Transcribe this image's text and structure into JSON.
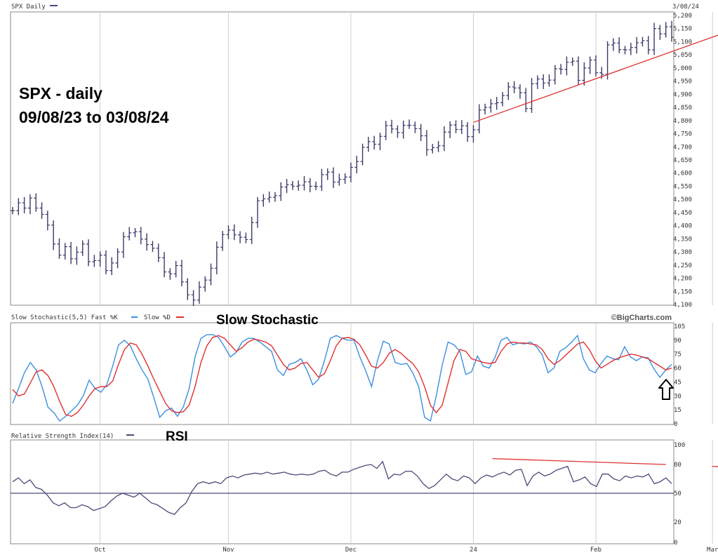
{
  "chart_data": [
    {
      "type": "ohlc",
      "panel": "price",
      "header": "SPX Daily",
      "date_label": "3/08/24",
      "annotation_lines": [
        "SPX - daily",
        "09/08/23 to 03/08/24"
      ],
      "y_ticks": [
        "5,200",
        "5,150",
        "5,100",
        "5,050",
        "5,000",
        "4,950",
        "4,900",
        "4,850",
        "4,800",
        "4,750",
        "4,700",
        "4,650",
        "4,600",
        "4,550",
        "4,500",
        "4,450",
        "4,400",
        "4,350",
        "4,300",
        "4,250",
        "4,200",
        "4,150",
        "4,100"
      ],
      "ylim": [
        4100,
        5200
      ],
      "closes": [
        4457,
        4487,
        4467,
        4505,
        4467,
        4443,
        4402,
        4330,
        4288,
        4320,
        4274,
        4299,
        4330,
        4263,
        4267,
        4288,
        4229,
        4258,
        4300,
        4358,
        4373,
        4377,
        4349,
        4328,
        4314,
        4278,
        4224,
        4217,
        4248,
        4186,
        4137,
        4117,
        4166,
        4193,
        4238,
        4318,
        4366,
        4383,
        4365,
        4356,
        4347,
        4412,
        4495,
        4502,
        4508,
        4514,
        4547,
        4556,
        4550,
        4554,
        4567,
        4550,
        4549,
        4594,
        4604,
        4566,
        4576,
        4585,
        4622,
        4644,
        4698,
        4720,
        4710,
        4740,
        4781,
        4768,
        4754,
        4782,
        4782,
        4769,
        4742,
        4689,
        4697,
        4704,
        4756,
        4783,
        4766,
        4780,
        4739,
        4765,
        4840,
        4850,
        4864,
        4868,
        4895,
        4928,
        4924,
        4906,
        4846,
        4940,
        4958,
        4943,
        4954,
        4997,
        4995,
        5022,
        5026,
        4953,
        5000,
        5030,
        4982,
        4976,
        5088,
        5095,
        5070,
        5069,
        5078,
        5096,
        5104,
        5069,
        5150,
        5130,
        5157,
        5117
      ],
      "trendlines": [
        {
          "color": "#e03030",
          "from": {
            "i": 79,
            "v": 4793
          },
          "to": {
            "i": 129,
            "v": 5189
          }
        }
      ],
      "x_ticks": [
        {
          "label": "Oct",
          "i": 15
        },
        {
          "label": "Nov",
          "i": 37
        },
        {
          "label": "Dec",
          "i": 58
        },
        {
          "label": "24",
          "i": 79
        },
        {
          "label": "Feb",
          "i": 100
        },
        {
          "label": "Mar",
          "i": 120
        }
      ]
    },
    {
      "type": "line",
      "panel": "stochastic",
      "header": "Slow Stochastic(5,5) Fast %K",
      "fast_label": "Fast %K",
      "slow_label": "Slow %D",
      "title": "Slow Stochastic",
      "watermark": "©BigCharts.com",
      "y_ticks": [
        "105",
        "90",
        "75",
        "60",
        "45",
        "30",
        "15",
        "0"
      ],
      "ylim": [
        0,
        105
      ],
      "series": [
        {
          "name": "Fast %K",
          "color": "#3b8fe0",
          "values": [
            22,
            38,
            55,
            66,
            58,
            40,
            18,
            12,
            3,
            8,
            14,
            20,
            30,
            47,
            38,
            34,
            42,
            62,
            85,
            90,
            84,
            70,
            58,
            48,
            28,
            7,
            14,
            17,
            8,
            18,
            38,
            72,
            92,
            96,
            96,
            93,
            83,
            72,
            77,
            88,
            92,
            92,
            88,
            83,
            78,
            58,
            52,
            64,
            66,
            70,
            58,
            42,
            48,
            68,
            92,
            95,
            92,
            90,
            90,
            72,
            57,
            40,
            68,
            89,
            86,
            66,
            64,
            65,
            55,
            40,
            7,
            3,
            30,
            63,
            88,
            85,
            78,
            53,
            56,
            73,
            62,
            60,
            72,
            90,
            93,
            85,
            87,
            86,
            88,
            83,
            74,
            55,
            60,
            78,
            82,
            88,
            95,
            70,
            58,
            55,
            65,
            73,
            70,
            69,
            83,
            72,
            68,
            72,
            71,
            59,
            50,
            58,
            64
          ]
        },
        {
          "name": "Slow %D",
          "color": "#e03030",
          "values": [
            37,
            30,
            32,
            44,
            56,
            58,
            52,
            40,
            24,
            10,
            8,
            12,
            20,
            30,
            38,
            40,
            40,
            46,
            64,
            80,
            87,
            85,
            75,
            62,
            48,
            35,
            22,
            14,
            12,
            13,
            20,
            40,
            66,
            84,
            93,
            95,
            92,
            85,
            78,
            82,
            88,
            91,
            90,
            88,
            84,
            74,
            64,
            58,
            60,
            65,
            66,
            58,
            50,
            54,
            68,
            84,
            92,
            93,
            91,
            85,
            74,
            62,
            60,
            66,
            76,
            80,
            76,
            70,
            65,
            56,
            40,
            20,
            12,
            20,
            44,
            68,
            80,
            78,
            70,
            68,
            66,
            65,
            66,
            78,
            86,
            88,
            87,
            87,
            86,
            85,
            80,
            70,
            64,
            68,
            74,
            80,
            86,
            88,
            80,
            68,
            60,
            64,
            68,
            71,
            73,
            75,
            74,
            72,
            70,
            66,
            62,
            58,
            60
          ]
        }
      ],
      "arrow": "up-arrow-icon"
    },
    {
      "type": "line",
      "panel": "rsi",
      "header": "Relative Strength Index(14)",
      "title": "RSI",
      "y_ticks": [
        "100",
        "80",
        "50",
        "20",
        "0"
      ],
      "ylim": [
        0,
        100
      ],
      "hline": 50,
      "series": [
        {
          "name": "Relative Strength Index(14)",
          "color": "#4a4a7a",
          "values": [
            62,
            66,
            60,
            64,
            56,
            54,
            48,
            40,
            37,
            40,
            35,
            35,
            38,
            36,
            32,
            34,
            36,
            42,
            47,
            50,
            48,
            46,
            50,
            45,
            40,
            38,
            34,
            30,
            28,
            35,
            40,
            52,
            60,
            62,
            60,
            62,
            60,
            66,
            68,
            66,
            69,
            70,
            71,
            70,
            72,
            70,
            71,
            72,
            70,
            69,
            70,
            69,
            70,
            73,
            74,
            70,
            68,
            72,
            72,
            75,
            77,
            79,
            80,
            76,
            83,
            65,
            70,
            69,
            73,
            73,
            68,
            60,
            55,
            58,
            64,
            70,
            65,
            63,
            68,
            66,
            60,
            66,
            69,
            67,
            70,
            72,
            69,
            74,
            75,
            58,
            68,
            72,
            68,
            70,
            74,
            76,
            78,
            62,
            64,
            67,
            60,
            57,
            70,
            70,
            65,
            63,
            68,
            66,
            68,
            67,
            70,
            60,
            62,
            66,
            60
          ]
        }
      ],
      "trendlines": [
        {
          "color": "#e03030",
          "from": {
            "i": 83,
            "v": 86
          },
          "to": {
            "i": 113,
            "v": 80
          }
        },
        {
          "color": "#e03030",
          "from": {
            "i": 121,
            "v": 78
          },
          "to": {
            "i": 143,
            "v": 73
          }
        }
      ]
    }
  ]
}
